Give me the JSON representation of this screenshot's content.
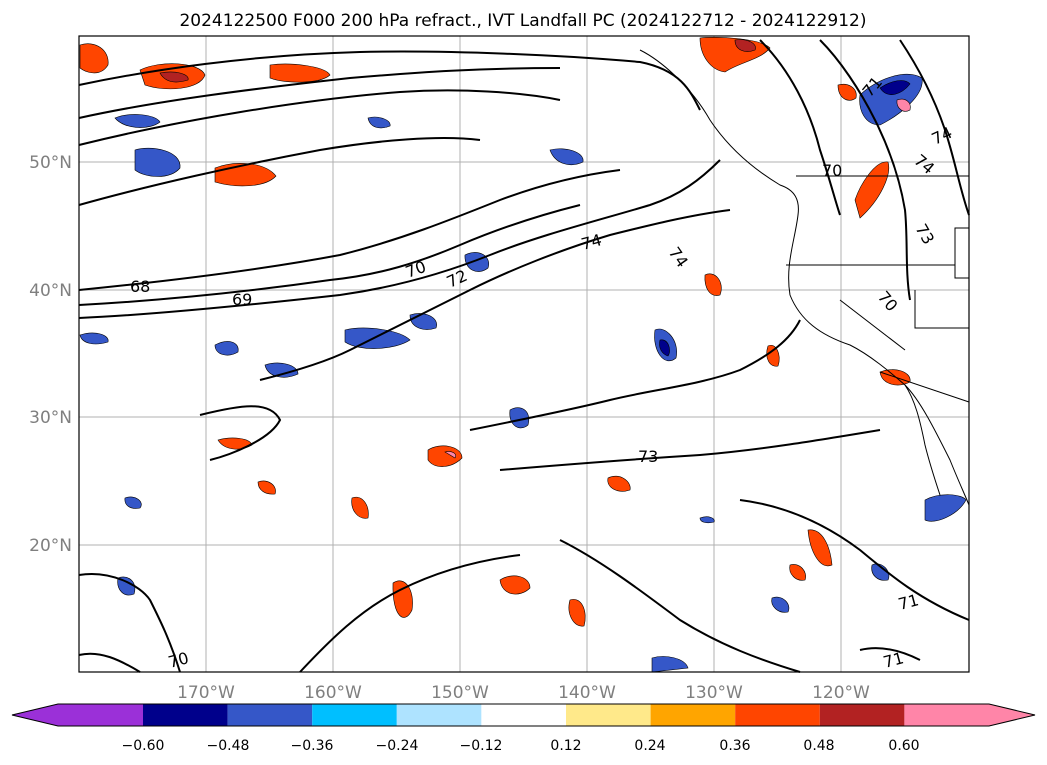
{
  "title": "2024122500 F000 200 hPa refract., IVT Landfall PC (2024122712 - 2024122912)",
  "map": {
    "lon_labels": [
      "170°W",
      "160°W",
      "150°W",
      "140°W",
      "130°W",
      "120°W"
    ],
    "lat_labels": [
      "50°N",
      "40°N",
      "30°N",
      "20°N"
    ],
    "gridlines": true,
    "region": "North-East Pacific and western North America"
  },
  "contours": {
    "color": "#000000",
    "labels": [
      "68",
      "69",
      "70",
      "72",
      "74",
      "74",
      "73",
      "70",
      "71",
      "70",
      "71",
      "74",
      "74",
      "73",
      "70",
      "71"
    ]
  },
  "colorbar": {
    "tick_labels": [
      "−0.60",
      "−0.48",
      "−0.36",
      "−0.24",
      "−0.12",
      "0.12",
      "0.24",
      "0.36",
      "0.48",
      "0.60"
    ],
    "colors": [
      "#9b30d8",
      "#00008b",
      "#3557c8",
      "#00bfff",
      "#aee3ff",
      "#ffffff",
      "#ffe98a",
      "#ffa500",
      "#ff4500",
      "#b22222",
      "#ff85a8"
    ],
    "extend": "both"
  }
}
